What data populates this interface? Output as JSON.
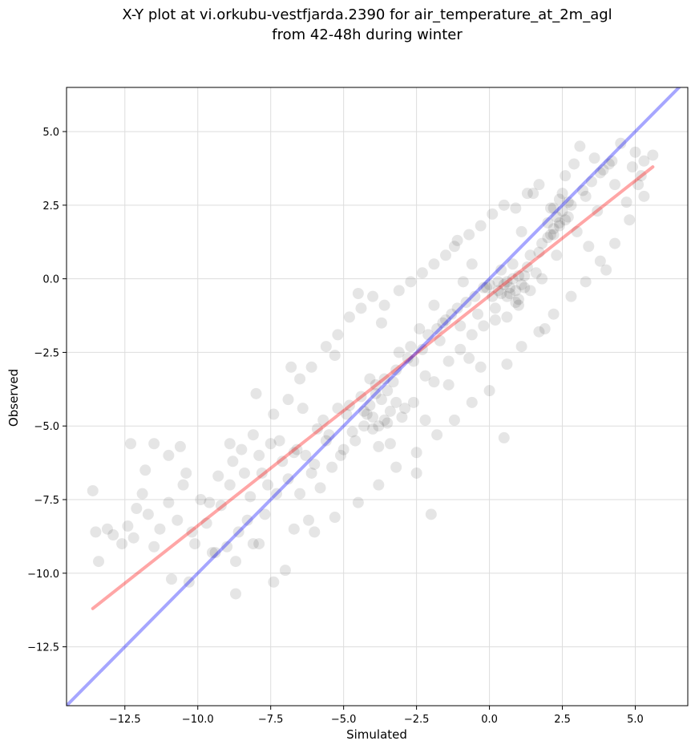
{
  "chart_data": {
    "type": "scatter",
    "title_line1": "X-Y plot at vi.orkubu-vestfjarda.2390 for air_temperature_at_2m_agl",
    "title_line2": "from 42-48h during winter",
    "xlabel": "Simulated",
    "ylabel": "Observed",
    "xlim": [
      -14.5,
      6.8
    ],
    "ylim": [
      -14.5,
      6.5
    ],
    "x_ticks": [
      -12.5,
      -10.0,
      -7.5,
      -5.0,
      -2.5,
      0.0,
      2.5,
      5.0
    ],
    "x_tick_labels": [
      "−12.5",
      "−10.0",
      "−7.5",
      "−5.0",
      "−2.5",
      "0.0",
      "2.5",
      "5.0"
    ],
    "y_ticks": [
      -12.5,
      -10.0,
      -7.5,
      -5.0,
      -2.5,
      0.0,
      2.5,
      5.0
    ],
    "y_tick_labels": [
      "−12.5",
      "−10.0",
      "−7.5",
      "−5.0",
      "−2.5",
      "0.0",
      "2.5",
      "5.0"
    ],
    "grid": true,
    "point_color": "#000000",
    "point_alpha": 0.1,
    "points": [
      [
        -13.6,
        -7.2
      ],
      [
        -13.5,
        -8.6
      ],
      [
        -13.4,
        -9.6
      ],
      [
        -13.1,
        -8.5
      ],
      [
        -12.9,
        -8.7
      ],
      [
        -12.6,
        -9.0
      ],
      [
        -12.4,
        -8.4
      ],
      [
        -12.1,
        -7.8
      ],
      [
        -12.2,
        -8.8
      ],
      [
        -11.9,
        -7.3
      ],
      [
        -11.7,
        -8.0
      ],
      [
        -11.5,
        -9.1
      ],
      [
        -11.3,
        -8.5
      ],
      [
        -11.0,
        -7.6
      ],
      [
        -10.9,
        -10.2
      ],
      [
        -10.7,
        -8.2
      ],
      [
        -10.5,
        -7.0
      ],
      [
        -10.3,
        -10.3
      ],
      [
        -10.1,
        -9.0
      ],
      [
        -9.9,
        -7.5
      ],
      [
        -12.3,
        -5.6
      ],
      [
        -11.8,
        -6.5
      ],
      [
        -11.5,
        -5.6
      ],
      [
        -11.0,
        -6.0
      ],
      [
        -10.6,
        -5.7
      ],
      [
        -10.4,
        -6.6
      ],
      [
        -9.7,
        -8.3
      ],
      [
        -9.5,
        -9.3
      ],
      [
        -9.2,
        -7.7
      ],
      [
        -9.0,
        -9.1
      ],
      [
        -8.9,
        -7.0
      ],
      [
        -8.7,
        -10.7
      ],
      [
        -8.8,
        -6.2
      ],
      [
        -8.5,
        -5.8
      ],
      [
        -8.3,
        -8.2
      ],
      [
        -8.1,
        -9.0
      ],
      [
        -8.0,
        -3.9
      ],
      [
        -7.8,
        -6.6
      ],
      [
        -7.6,
        -7.0
      ],
      [
        -7.4,
        -10.3
      ],
      [
        -7.2,
        -5.5
      ],
      [
        -7.0,
        -9.9
      ],
      [
        -6.8,
        -3.0
      ],
      [
        -6.6,
        -5.8
      ],
      [
        -6.4,
        -4.4
      ],
      [
        -6.2,
        -8.2
      ],
      [
        -6.0,
        -6.3
      ],
      [
        -5.8,
        -7.1
      ],
      [
        -5.7,
        -4.8
      ],
      [
        -5.5,
        -5.3
      ],
      [
        -5.3,
        -2.6
      ],
      [
        -5.1,
        -6.0
      ],
      [
        -4.9,
        -4.6
      ],
      [
        -4.7,
        -5.2
      ],
      [
        -4.5,
        -0.5
      ],
      [
        -4.3,
        -5.0
      ],
      [
        -4.1,
        -3.4
      ],
      [
        -4.0,
        -4.7
      ],
      [
        -3.8,
        -5.7
      ],
      [
        -3.7,
        -1.5
      ],
      [
        -3.5,
        -4.9
      ],
      [
        -3.3,
        -3.5
      ],
      [
        -3.1,
        -2.5
      ],
      [
        -2.9,
        -4.4
      ],
      [
        -2.7,
        -2.3
      ],
      [
        -2.5,
        -6.6
      ],
      [
        -2.4,
        -1.7
      ],
      [
        -2.2,
        -3.3
      ],
      [
        -2.0,
        -8.0
      ],
      [
        -1.9,
        -0.9
      ],
      [
        -1.7,
        -2.1
      ],
      [
        -1.5,
        -1.4
      ],
      [
        -1.4,
        -3.6
      ],
      [
        -1.2,
        1.1
      ],
      [
        -1.0,
        -1.6
      ],
      [
        -0.9,
        -0.1
      ],
      [
        -0.7,
        -2.7
      ],
      [
        -0.6,
        0.5
      ],
      [
        -0.4,
        -1.2
      ],
      [
        -0.3,
        -3.0
      ],
      [
        -0.1,
        -0.3
      ],
      [
        0.1,
        -0.6
      ],
      [
        0.2,
        -1.4
      ],
      [
        0.4,
        0.3
      ],
      [
        0.5,
        -5.4
      ],
      [
        0.6,
        -0.1
      ],
      [
        0.8,
        0.5
      ],
      [
        0.9,
        -0.8
      ],
      [
        1.1,
        1.6
      ],
      [
        1.2,
        -0.3
      ],
      [
        1.4,
        0.8
      ],
      [
        1.5,
        2.9
      ],
      [
        1.6,
        0.2
      ],
      [
        1.8,
        1.2
      ],
      [
        1.9,
        -1.7
      ],
      [
        2.1,
        2.4
      ],
      [
        2.2,
        1.5
      ],
      [
        2.3,
        0.8
      ],
      [
        2.5,
        2.9
      ],
      [
        2.6,
        3.5
      ],
      [
        2.7,
        2.1
      ],
      [
        2.9,
        3.9
      ],
      [
        3.0,
        1.6
      ],
      [
        3.1,
        4.5
      ],
      [
        3.3,
        2.8
      ],
      [
        3.4,
        1.1
      ],
      [
        3.6,
        4.1
      ],
      [
        3.7,
        2.3
      ],
      [
        3.9,
        3.7
      ],
      [
        4.0,
        0.3
      ],
      [
        4.2,
        4.0
      ],
      [
        4.3,
        3.2
      ],
      [
        4.5,
        4.6
      ],
      [
        4.7,
        2.6
      ],
      [
        4.9,
        3.8
      ],
      [
        5.0,
        4.3
      ],
      [
        5.2,
        3.5
      ],
      [
        5.3,
        4.0
      ],
      [
        5.6,
        4.2
      ],
      [
        5.1,
        3.2
      ],
      [
        -9.3,
        -6.7
      ],
      [
        -8.4,
        -6.6
      ],
      [
        -7.9,
        -6.0
      ],
      [
        -7.5,
        -5.6
      ],
      [
        -7.1,
        -6.2
      ],
      [
        -6.7,
        -5.9
      ],
      [
        -6.3,
        -6.0
      ],
      [
        -5.9,
        -5.1
      ],
      [
        -5.6,
        -5.5
      ],
      [
        -5.2,
        -4.4
      ],
      [
        -4.8,
        -4.3
      ],
      [
        -4.4,
        -4.0
      ],
      [
        -4.2,
        -4.6
      ],
      [
        -3.9,
        -3.6
      ],
      [
        -3.6,
        -3.4
      ],
      [
        -3.2,
        -3.1
      ],
      [
        -2.8,
        -2.7
      ],
      [
        -2.6,
        -2.8
      ],
      [
        -2.3,
        -2.4
      ],
      [
        -2.1,
        -1.9
      ],
      [
        -1.8,
        -1.7
      ],
      [
        -1.6,
        -1.5
      ],
      [
        -1.3,
        -1.2
      ],
      [
        -1.1,
        -1.0
      ],
      [
        -0.8,
        -0.8
      ],
      [
        -0.5,
        -0.6
      ],
      [
        -0.2,
        -0.3
      ],
      [
        0.0,
        -0.2
      ],
      [
        0.3,
        -0.4
      ],
      [
        0.7,
        -0.5
      ],
      [
        1.0,
        0.1
      ],
      [
        1.3,
        0.4
      ],
      [
        1.7,
        0.9
      ],
      [
        2.0,
        1.4
      ],
      [
        2.4,
        1.8
      ],
      [
        2.8,
        2.5
      ],
      [
        3.2,
        3.0
      ],
      [
        3.5,
        3.3
      ],
      [
        3.8,
        3.6
      ],
      [
        4.1,
        3.9
      ],
      [
        -9.6,
        -7.6
      ],
      [
        -8.6,
        -8.6
      ],
      [
        -8.2,
        -7.4
      ],
      [
        -7.7,
        -8.0
      ],
      [
        -7.3,
        -7.3
      ],
      [
        -6.9,
        -6.8
      ],
      [
        -6.5,
        -7.3
      ],
      [
        -6.1,
        -6.6
      ],
      [
        -5.4,
        -6.4
      ],
      [
        -5.0,
        -5.8
      ],
      [
        -4.6,
        -5.5
      ],
      [
        -3.4,
        -5.6
      ],
      [
        -3.0,
        -4.7
      ],
      [
        -2.6,
        -4.2
      ],
      [
        -2.2,
        -4.8
      ],
      [
        -1.9,
        -3.5
      ],
      [
        -1.4,
        -2.8
      ],
      [
        -1.0,
        -2.4
      ],
      [
        -0.6,
        -1.9
      ],
      [
        -0.2,
        -1.6
      ],
      [
        0.2,
        -1.0
      ],
      [
        0.6,
        -1.3
      ],
      [
        1.0,
        -0.9
      ],
      [
        1.4,
        -0.4
      ],
      [
        1.8,
        0.0
      ],
      [
        -8.9,
        -5.6
      ],
      [
        -8.1,
        -5.3
      ],
      [
        -7.4,
        -4.6
      ],
      [
        -6.9,
        -4.1
      ],
      [
        -6.5,
        -3.4
      ],
      [
        -6.1,
        -3.0
      ],
      [
        -5.6,
        -2.3
      ],
      [
        -5.2,
        -1.9
      ],
      [
        -4.8,
        -1.3
      ],
      [
        -4.4,
        -1.0
      ],
      [
        -4.0,
        -0.6
      ],
      [
        -3.6,
        -0.9
      ],
      [
        -3.1,
        -0.4
      ],
      [
        -2.7,
        -0.1
      ],
      [
        -2.3,
        0.2
      ],
      [
        -1.9,
        0.5
      ],
      [
        -1.5,
        0.8
      ],
      [
        -1.1,
        1.3
      ],
      [
        -0.7,
        1.5
      ],
      [
        -0.3,
        1.8
      ],
      [
        0.1,
        2.2
      ],
      [
        0.5,
        2.5
      ],
      [
        0.9,
        2.4
      ],
      [
        1.3,
        2.9
      ],
      [
        1.7,
        3.2
      ],
      [
        -10.2,
        -8.6
      ],
      [
        -9.4,
        -9.3
      ],
      [
        -8.7,
        -9.6
      ],
      [
        -7.9,
        -9.0
      ],
      [
        -6.7,
        -8.5
      ],
      [
        -6.0,
        -8.6
      ],
      [
        -5.3,
        -8.1
      ],
      [
        -4.5,
        -7.6
      ],
      [
        -3.8,
        -7.0
      ],
      [
        -3.2,
        -6.4
      ],
      [
        -2.5,
        -5.9
      ],
      [
        -1.8,
        -5.3
      ],
      [
        -1.2,
        -4.8
      ],
      [
        -0.6,
        -4.2
      ],
      [
        0.0,
        -3.8
      ],
      [
        0.6,
        -2.9
      ],
      [
        1.1,
        -2.3
      ],
      [
        1.7,
        -1.8
      ],
      [
        2.2,
        -1.2
      ],
      [
        2.8,
        -0.6
      ],
      [
        3.3,
        -0.1
      ],
      [
        3.8,
        0.6
      ],
      [
        4.3,
        1.2
      ],
      [
        4.8,
        2.0
      ],
      [
        5.3,
        2.8
      ],
      [
        -3.9,
        -3.9
      ],
      [
        -3.7,
        -4.1
      ],
      [
        -3.5,
        -3.8
      ],
      [
        -4.1,
        -4.3
      ],
      [
        -4.3,
        -4.5
      ],
      [
        -3.8,
        -5.0
      ],
      [
        -3.6,
        -4.8
      ],
      [
        -4.0,
        -5.1
      ],
      [
        -3.4,
        -4.5
      ],
      [
        -3.2,
        -4.2
      ],
      [
        0.5,
        -0.2
      ],
      [
        0.7,
        -0.3
      ],
      [
        0.9,
        -0.4
      ],
      [
        1.1,
        -0.2
      ],
      [
        0.8,
        0.0
      ],
      [
        0.6,
        -0.6
      ],
      [
        1.0,
        -0.7
      ],
      [
        1.2,
        0.1
      ],
      [
        0.4,
        -0.5
      ],
      [
        0.3,
        -0.1
      ],
      [
        2.2,
        1.7
      ],
      [
        2.4,
        1.9
      ],
      [
        2.3,
        2.1
      ],
      [
        2.5,
        2.3
      ],
      [
        2.6,
        2.0
      ],
      [
        2.1,
        1.5
      ],
      [
        2.7,
        2.6
      ],
      [
        2.4,
        2.7
      ],
      [
        2.2,
        2.4
      ],
      [
        2.0,
        1.9
      ]
    ],
    "series": [
      {
        "name": "",
        "type": "line",
        "color": "#ff0000",
        "alpha": 0.35,
        "x": [
          -13.6,
          5.6
        ],
        "y": [
          -11.2,
          3.8
        ]
      },
      {
        "name": "",
        "type": "line",
        "color": "#0000ff",
        "alpha": 0.35,
        "x": [
          -14.5,
          6.8
        ],
        "y": [
          -14.5,
          6.8
        ]
      }
    ]
  }
}
